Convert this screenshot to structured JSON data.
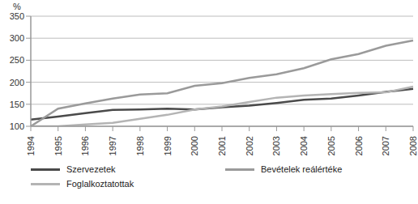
{
  "chart_data": {
    "type": "line",
    "y_label": "%",
    "categories": [
      "1994",
      "1995",
      "1996",
      "1997",
      "1998",
      "1999",
      "2000",
      "2001",
      "2002",
      "2003",
      "2004",
      "2005",
      "2006",
      "2007",
      "2008"
    ],
    "series": [
      {
        "name": "Szervezetek",
        "color": "#4a4a4a",
        "values": [
          115,
          122,
          130,
          137,
          138,
          140,
          138,
          143,
          147,
          153,
          160,
          163,
          170,
          178,
          185
        ]
      },
      {
        "name": "Bevételek reálértéke",
        "color": "#9a9a9a",
        "values": [
          100,
          140,
          152,
          163,
          172,
          175,
          192,
          198,
          210,
          218,
          232,
          252,
          264,
          283,
          295
        ]
      },
      {
        "name": "Foglalkoztatottak",
        "color": "#b4b4b4",
        "values": [
          100,
          100,
          104,
          108,
          117,
          126,
          138,
          145,
          155,
          165,
          170,
          173,
          176,
          177,
          190
        ]
      }
    ],
    "ylim": [
      100,
      350
    ],
    "yticks": [
      100,
      150,
      200,
      250,
      300,
      350
    ],
    "grid": true,
    "legend": "bottom"
  }
}
